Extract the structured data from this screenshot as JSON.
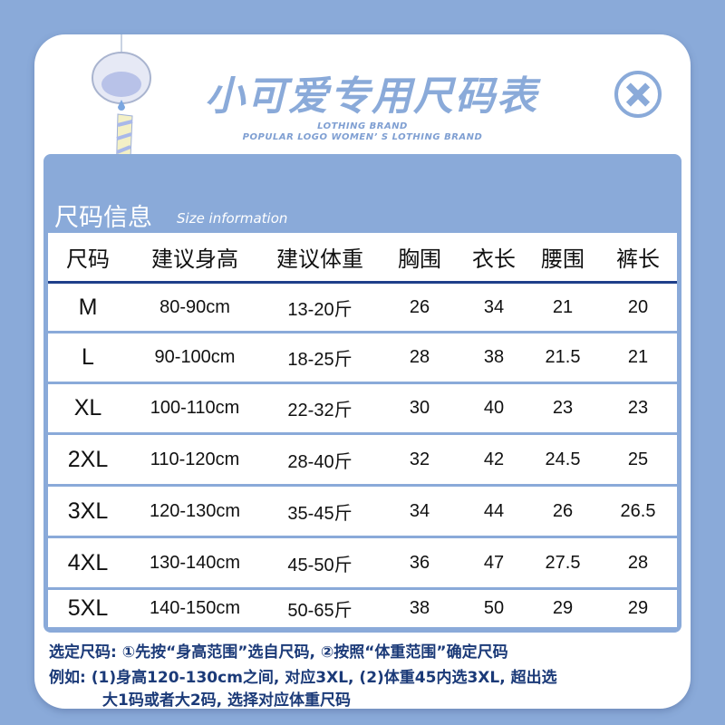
{
  "header": {
    "title": "小可爱专用尺码表",
    "brand_line1": "LOTHING BRAND",
    "brand_line2": "POPULAR LOGO WOMEN’ S LOTHING BRAND",
    "close_icon": "circle-x-icon"
  },
  "section": {
    "title": "尺码信息",
    "subtitle": "Size information"
  },
  "table": {
    "columns": [
      "尺码",
      "建议身高",
      "建议体重",
      "胸围",
      "衣长",
      "腰围",
      "裤长"
    ],
    "rows": [
      [
        "M",
        "80-90cm",
        "13-20斤",
        "26",
        "34",
        "21",
        "20"
      ],
      [
        "L",
        "90-100cm",
        "18-25斤",
        "28",
        "38",
        "21.5",
        "21"
      ],
      [
        "XL",
        "100-110cm",
        "22-32斤",
        "30",
        "40",
        "23",
        "23"
      ],
      [
        "2XL",
        "110-120cm",
        "28-40斤",
        "32",
        "42",
        "24.5",
        "25"
      ],
      [
        "3XL",
        "120-130cm",
        "35-45斤",
        "34",
        "44",
        "26",
        "26.5"
      ],
      [
        "4XL",
        "130-140cm",
        "45-50斤",
        "36",
        "47",
        "27.5",
        "28"
      ],
      [
        "5XL",
        "140-150cm",
        "50-65斤",
        "38",
        "50",
        "29",
        "29"
      ]
    ]
  },
  "notes": {
    "line1": "选定尺码: ①先按“身高范围”选自尺码, ②按照“体重范围”确定尺码",
    "line2": "例如: (1)身高120-130cm之间, 对应3XL, (2)体重45内选3XL, 超出选",
    "line3": "大1码或者大2码, 选择对应体重尺码"
  },
  "colors": {
    "background": "#8aaad9",
    "text_dark": "#1b3a78",
    "header_line": "#1e3f8a"
  }
}
